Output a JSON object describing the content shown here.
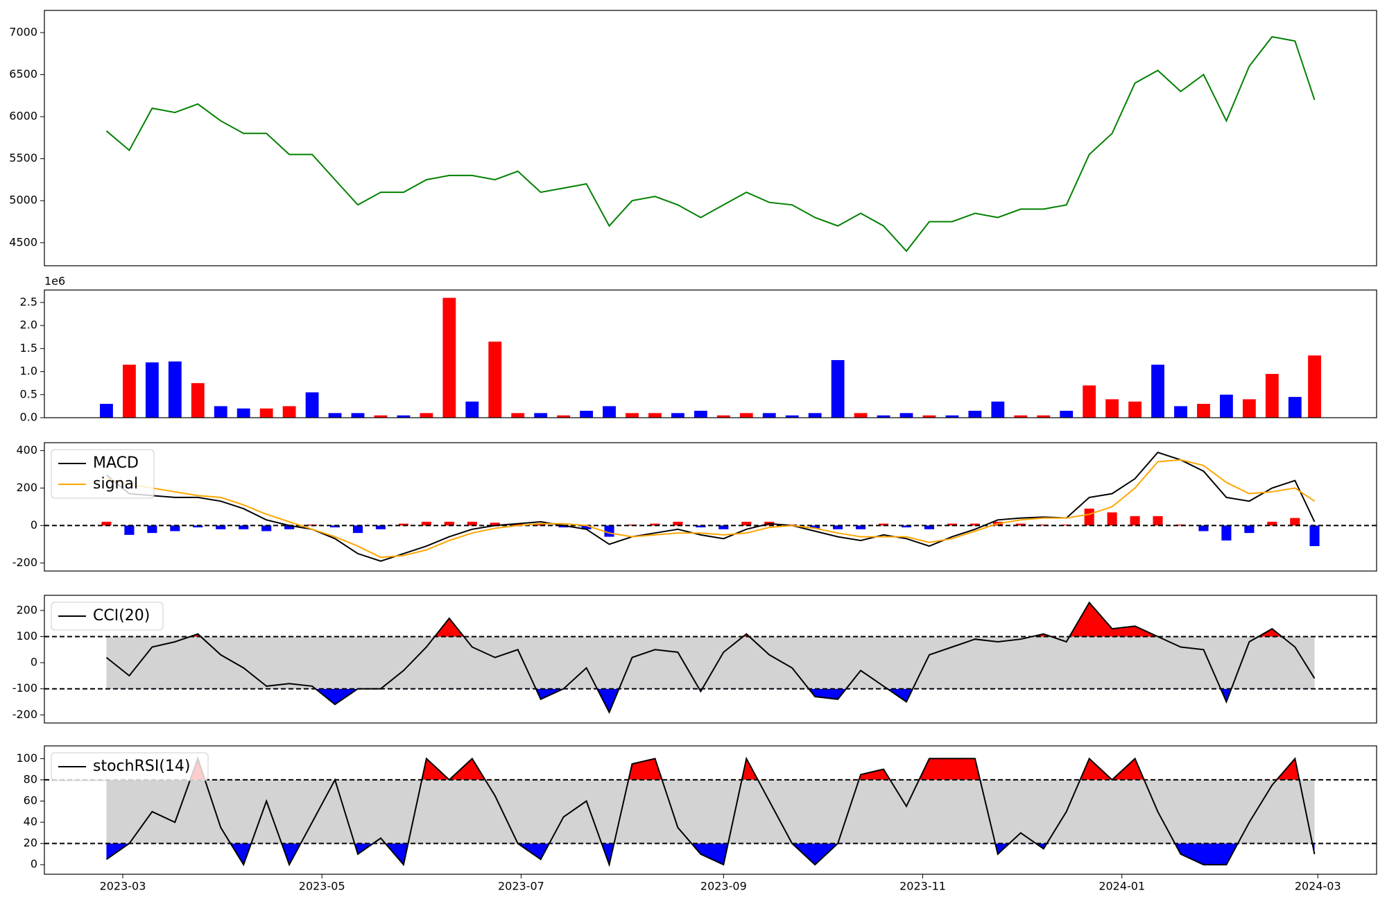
{
  "chart_data": [
    {
      "type": "line",
      "color": "#008000",
      "x": [
        "2023-02-24",
        "2023-03-03",
        "2023-03-10",
        "2023-03-17",
        "2023-03-24",
        "2023-03-31",
        "2023-04-07",
        "2023-04-14",
        "2023-04-21",
        "2023-04-28",
        "2023-05-05",
        "2023-05-12",
        "2023-05-19",
        "2023-05-26",
        "2023-06-02",
        "2023-06-09",
        "2023-06-16",
        "2023-06-23",
        "2023-06-30",
        "2023-07-07",
        "2023-07-14",
        "2023-07-21",
        "2023-07-28",
        "2023-08-04",
        "2023-08-11",
        "2023-08-18",
        "2023-08-25",
        "2023-09-01",
        "2023-09-08",
        "2023-09-15",
        "2023-09-22",
        "2023-09-29",
        "2023-10-06",
        "2023-10-13",
        "2023-10-20",
        "2023-10-27",
        "2023-11-03",
        "2023-11-10",
        "2023-11-17",
        "2023-11-24",
        "2023-12-01",
        "2023-12-08",
        "2023-12-15",
        "2023-12-22",
        "2023-12-29",
        "2024-01-05",
        "2024-01-12",
        "2024-01-19",
        "2024-01-26",
        "2024-02-02",
        "2024-02-09",
        "2024-02-16",
        "2024-02-23",
        "2024-02-29"
      ],
      "values": [
        5830,
        5600,
        6100,
        6050,
        6150,
        5950,
        5800,
        5800,
        5550,
        5550,
        5250,
        4950,
        5100,
        5100,
        5250,
        5300,
        5300,
        5250,
        5350,
        5100,
        5150,
        5200,
        4700,
        5000,
        5050,
        4950,
        4800,
        4950,
        5100,
        4980,
        4950,
        4800,
        4700,
        4850,
        4700,
        4400,
        4750,
        4750,
        4850,
        4800,
        4900,
        4900,
        4950,
        5550,
        5800,
        6400,
        6550,
        6300,
        6500,
        5950,
        6600,
        6950,
        6900,
        6200
      ],
      "xlim": [
        "2023-02-05",
        "2024-03-19"
      ],
      "ylim": [
        4226,
        7264
      ],
      "yticks": [
        4500,
        5000,
        5500,
        6000,
        6500,
        7000
      ]
    },
    {
      "type": "bar",
      "offset_label": "1e6",
      "x": [
        "2023-02-24",
        "2023-03-03",
        "2023-03-10",
        "2023-03-17",
        "2023-03-24",
        "2023-03-31",
        "2023-04-07",
        "2023-04-14",
        "2023-04-21",
        "2023-04-28",
        "2023-05-05",
        "2023-05-12",
        "2023-05-19",
        "2023-05-26",
        "2023-06-02",
        "2023-06-09",
        "2023-06-16",
        "2023-06-23",
        "2023-06-30",
        "2023-07-07",
        "2023-07-14",
        "2023-07-21",
        "2023-07-28",
        "2023-08-04",
        "2023-08-11",
        "2023-08-18",
        "2023-08-25",
        "2023-09-01",
        "2023-09-08",
        "2023-09-15",
        "2023-09-22",
        "2023-09-29",
        "2023-10-06",
        "2023-10-13",
        "2023-10-20",
        "2023-10-27",
        "2023-11-03",
        "2023-11-10",
        "2023-11-17",
        "2023-11-24",
        "2023-12-01",
        "2023-12-08",
        "2023-12-15",
        "2023-12-22",
        "2023-12-29",
        "2024-01-05",
        "2024-01-12",
        "2024-01-19",
        "2024-01-26",
        "2024-02-02",
        "2024-02-09",
        "2024-02-16",
        "2024-02-23",
        "2024-02-29"
      ],
      "values": [
        0.3,
        1.15,
        1.2,
        1.22,
        0.75,
        0.25,
        0.2,
        0.2,
        0.25,
        0.55,
        0.1,
        0.1,
        0.05,
        0.05,
        0.1,
        2.6,
        0.35,
        1.65,
        0.1,
        0.1,
        0.05,
        0.15,
        0.25,
        0.1,
        0.1,
        0.1,
        0.15,
        0.05,
        0.1,
        0.1,
        0.05,
        0.1,
        1.25,
        0.1,
        0.05,
        0.1,
        0.05,
        0.05,
        0.15,
        0.35,
        0.05,
        0.05,
        0.15,
        0.7,
        0.4,
        0.35,
        1.15,
        0.25,
        0.3,
        0.5,
        0.4,
        0.95,
        0.45,
        1.35
      ],
      "colors": [
        "#0000ff",
        "#ff0000",
        "#0000ff",
        "#0000ff",
        "#ff0000",
        "#0000ff",
        "#0000ff",
        "#ff0000",
        "#ff0000",
        "#0000ff",
        "#0000ff",
        "#0000ff",
        "#ff0000",
        "#0000ff",
        "#ff0000",
        "#ff0000",
        "#0000ff",
        "#ff0000",
        "#ff0000",
        "#0000ff",
        "#ff0000",
        "#0000ff",
        "#0000ff",
        "#ff0000",
        "#ff0000",
        "#0000ff",
        "#0000ff",
        "#ff0000",
        "#ff0000",
        "#0000ff",
        "#0000ff",
        "#0000ff",
        "#0000ff",
        "#ff0000",
        "#0000ff",
        "#0000ff",
        "#ff0000",
        "#0000ff",
        "#0000ff",
        "#0000ff",
        "#ff0000",
        "#ff0000",
        "#0000ff",
        "#ff0000",
        "#ff0000",
        "#ff0000",
        "#0000ff",
        "#0000ff",
        "#ff0000",
        "#0000ff",
        "#ff0000",
        "#ff0000",
        "#0000ff",
        "#ff0000"
      ],
      "xlim": [
        "2023-02-05",
        "2024-03-19"
      ],
      "ylim": [
        0,
        2.77
      ],
      "yticks": [
        {
          "value": 0,
          "label": "0.0"
        },
        0.5,
        {
          "value": 1,
          "label": "1.0"
        },
        1.5,
        {
          "value": 2,
          "label": "2.0"
        },
        2.5
      ]
    },
    {
      "type": "macd",
      "legend": "upper left",
      "x": [
        "2023-02-24",
        "2023-03-03",
        "2023-03-10",
        "2023-03-17",
        "2023-03-24",
        "2023-03-31",
        "2023-04-07",
        "2023-04-14",
        "2023-04-21",
        "2023-04-28",
        "2023-05-05",
        "2023-05-12",
        "2023-05-19",
        "2023-05-26",
        "2023-06-02",
        "2023-06-09",
        "2023-06-16",
        "2023-06-23",
        "2023-06-30",
        "2023-07-07",
        "2023-07-14",
        "2023-07-21",
        "2023-07-28",
        "2023-08-04",
        "2023-08-11",
        "2023-08-18",
        "2023-08-25",
        "2023-09-01",
        "2023-09-08",
        "2023-09-15",
        "2023-09-22",
        "2023-09-29",
        "2023-10-06",
        "2023-10-13",
        "2023-10-20",
        "2023-10-27",
        "2023-11-03",
        "2023-11-10",
        "2023-11-17",
        "2023-11-24",
        "2023-12-01",
        "2023-12-08",
        "2023-12-15",
        "2023-12-22",
        "2023-12-29",
        "2024-01-05",
        "2024-01-12",
        "2024-01-19",
        "2024-01-26",
        "2024-02-02",
        "2024-02-09",
        "2024-02-16",
        "2024-02-23",
        "2024-02-29"
      ],
      "series": [
        {
          "name": "MACD",
          "color": "#000000",
          "values": [
            270,
            170,
            160,
            150,
            150,
            130,
            90,
            30,
            0,
            -20,
            -70,
            -150,
            -190,
            -150,
            -110,
            -60,
            -20,
            0,
            10,
            20,
            0,
            -20,
            -100,
            -60,
            -40,
            -20,
            -50,
            -70,
            -20,
            10,
            0,
            -30,
            -60,
            -80,
            -50,
            -70,
            -110,
            -60,
            -20,
            30,
            40,
            45,
            40,
            150,
            170,
            250,
            390,
            350,
            290,
            150,
            130,
            200,
            240,
            20
          ]
        },
        {
          "name": "signal",
          "color": "#ffa500",
          "values": [
            250,
            220,
            200,
            180,
            160,
            150,
            110,
            60,
            20,
            -20,
            -60,
            -110,
            -170,
            -160,
            -130,
            -80,
            -40,
            -15,
            0,
            10,
            10,
            0,
            -40,
            -60,
            -50,
            -40,
            -40,
            -50,
            -40,
            -10,
            0,
            -15,
            -40,
            -60,
            -60,
            -60,
            -90,
            -70,
            -30,
            10,
            30,
            40,
            40,
            60,
            100,
            200,
            340,
            350,
            320,
            230,
            170,
            180,
            200,
            130
          ]
        }
      ],
      "histogram": {
        "up_color": "#ff0000",
        "down_color": "#0000ff",
        "values": [
          20,
          -50,
          -40,
          -30,
          -10,
          -20,
          -20,
          -30,
          -20,
          5,
          -10,
          -40,
          -20,
          10,
          20,
          20,
          20,
          15,
          10,
          10,
          -10,
          -20,
          -60,
          5,
          10,
          20,
          -10,
          -20,
          20,
          20,
          5,
          -15,
          -20,
          -20,
          10,
          -10,
          -20,
          10,
          10,
          20,
          10,
          5,
          5,
          90,
          70,
          50,
          50,
          5,
          -30,
          -80,
          -40,
          20,
          40,
          -110
        ]
      },
      "hlines": [
        0
      ],
      "xlim": [
        "2023-02-05",
        "2024-03-19"
      ],
      "ylim": [
        -243,
        442
      ],
      "yticks": [
        -200,
        0,
        200,
        400
      ]
    },
    {
      "type": "oscillator",
      "legend": "upper left",
      "x": [
        "2023-02-24",
        "2023-03-03",
        "2023-03-10",
        "2023-03-17",
        "2023-03-24",
        "2023-03-31",
        "2023-04-07",
        "2023-04-14",
        "2023-04-21",
        "2023-04-28",
        "2023-05-05",
        "2023-05-12",
        "2023-05-19",
        "2023-05-26",
        "2023-06-02",
        "2023-06-09",
        "2023-06-16",
        "2023-06-23",
        "2023-06-30",
        "2023-07-07",
        "2023-07-14",
        "2023-07-21",
        "2023-07-28",
        "2023-08-04",
        "2023-08-11",
        "2023-08-18",
        "2023-08-25",
        "2023-09-01",
        "2023-09-08",
        "2023-09-15",
        "2023-09-22",
        "2023-09-29",
        "2023-10-06",
        "2023-10-13",
        "2023-10-20",
        "2023-10-27",
        "2023-11-03",
        "2023-11-10",
        "2023-11-17",
        "2023-11-24",
        "2023-12-01",
        "2023-12-08",
        "2023-12-15",
        "2023-12-22",
        "2023-12-29",
        "2024-01-05",
        "2024-01-12",
        "2024-01-19",
        "2024-01-26",
        "2024-02-02",
        "2024-02-09",
        "2024-02-16",
        "2024-02-23",
        "2024-02-29"
      ],
      "series": [
        {
          "name": "CCI(20)",
          "color": "#000000",
          "values": [
            20,
            -50,
            60,
            80,
            110,
            30,
            -20,
            -90,
            -80,
            -90,
            -160,
            -100,
            -100,
            -30,
            60,
            170,
            60,
            20,
            50,
            -140,
            -100,
            -20,
            -190,
            20,
            50,
            40,
            -110,
            40,
            110,
            30,
            -20,
            -130,
            -140,
            -30,
            -90,
            -150,
            30,
            60,
            90,
            80,
            90,
            110,
            80,
            230,
            130,
            140,
            100,
            60,
            50,
            -150,
            80,
            130,
            60,
            -60
          ]
        }
      ],
      "thresholds": [
        -100,
        100
      ],
      "band_color": "#d3d3d3",
      "above_color": "#ff0000",
      "below_color": "#0000ff",
      "xlim": [
        "2023-02-05",
        "2024-03-19"
      ],
      "ylim": [
        -231,
        258
      ],
      "yticks": [
        -200,
        -100,
        0,
        100,
        200
      ]
    },
    {
      "type": "oscillator",
      "legend": "upper left",
      "x": [
        "2023-02-24",
        "2023-03-03",
        "2023-03-10",
        "2023-03-17",
        "2023-03-24",
        "2023-03-31",
        "2023-04-07",
        "2023-04-14",
        "2023-04-21",
        "2023-04-28",
        "2023-05-05",
        "2023-05-12",
        "2023-05-19",
        "2023-05-26",
        "2023-06-02",
        "2023-06-09",
        "2023-06-16",
        "2023-06-23",
        "2023-06-30",
        "2023-07-07",
        "2023-07-14",
        "2023-07-21",
        "2023-07-28",
        "2023-08-04",
        "2023-08-11",
        "2023-08-18",
        "2023-08-25",
        "2023-09-01",
        "2023-09-08",
        "2023-09-15",
        "2023-09-22",
        "2023-09-29",
        "2023-10-06",
        "2023-10-13",
        "2023-10-20",
        "2023-10-27",
        "2023-11-03",
        "2023-11-10",
        "2023-11-17",
        "2023-11-24",
        "2023-12-01",
        "2023-12-08",
        "2023-12-15",
        "2023-12-22",
        "2023-12-29",
        "2024-01-05",
        "2024-01-12",
        "2024-01-19",
        "2024-01-26",
        "2024-02-02",
        "2024-02-09",
        "2024-02-16",
        "2024-02-23",
        "2024-02-29"
      ],
      "series": [
        {
          "name": "stochRSI(14)",
          "color": "#000000",
          "values": [
            5,
            20,
            50,
            40,
            100,
            35,
            0,
            60,
            0,
            40,
            80,
            10,
            25,
            0,
            100,
            80,
            100,
            65,
            20,
            5,
            45,
            60,
            0,
            95,
            100,
            35,
            10,
            0,
            100,
            60,
            20,
            0,
            20,
            85,
            90,
            55,
            100,
            100,
            100,
            10,
            30,
            15,
            50,
            100,
            80,
            100,
            50,
            10,
            0,
            0,
            40,
            75,
            100,
            10
          ]
        }
      ],
      "thresholds": [
        20,
        80
      ],
      "band_color": "#d3d3d3",
      "above_color": "#ff0000",
      "below_color": "#0000ff",
      "xlim": [
        "2023-02-05",
        "2024-03-19"
      ],
      "ylim": [
        -9,
        112
      ],
      "yticks": [
        0,
        20,
        40,
        60,
        80,
        100
      ],
      "xticks": [
        {
          "value": "2023-03-01",
          "label": "2023-03"
        },
        {
          "value": "2023-05-01",
          "label": "2023-05"
        },
        {
          "value": "2023-07-01",
          "label": "2023-07"
        },
        {
          "value": "2023-09-01",
          "label": "2023-09"
        },
        {
          "value": "2023-11-01",
          "label": "2023-11"
        },
        {
          "value": "2024-01-01",
          "label": "2024-01"
        },
        {
          "value": "2024-03-01",
          "label": "2024-03"
        }
      ]
    }
  ]
}
